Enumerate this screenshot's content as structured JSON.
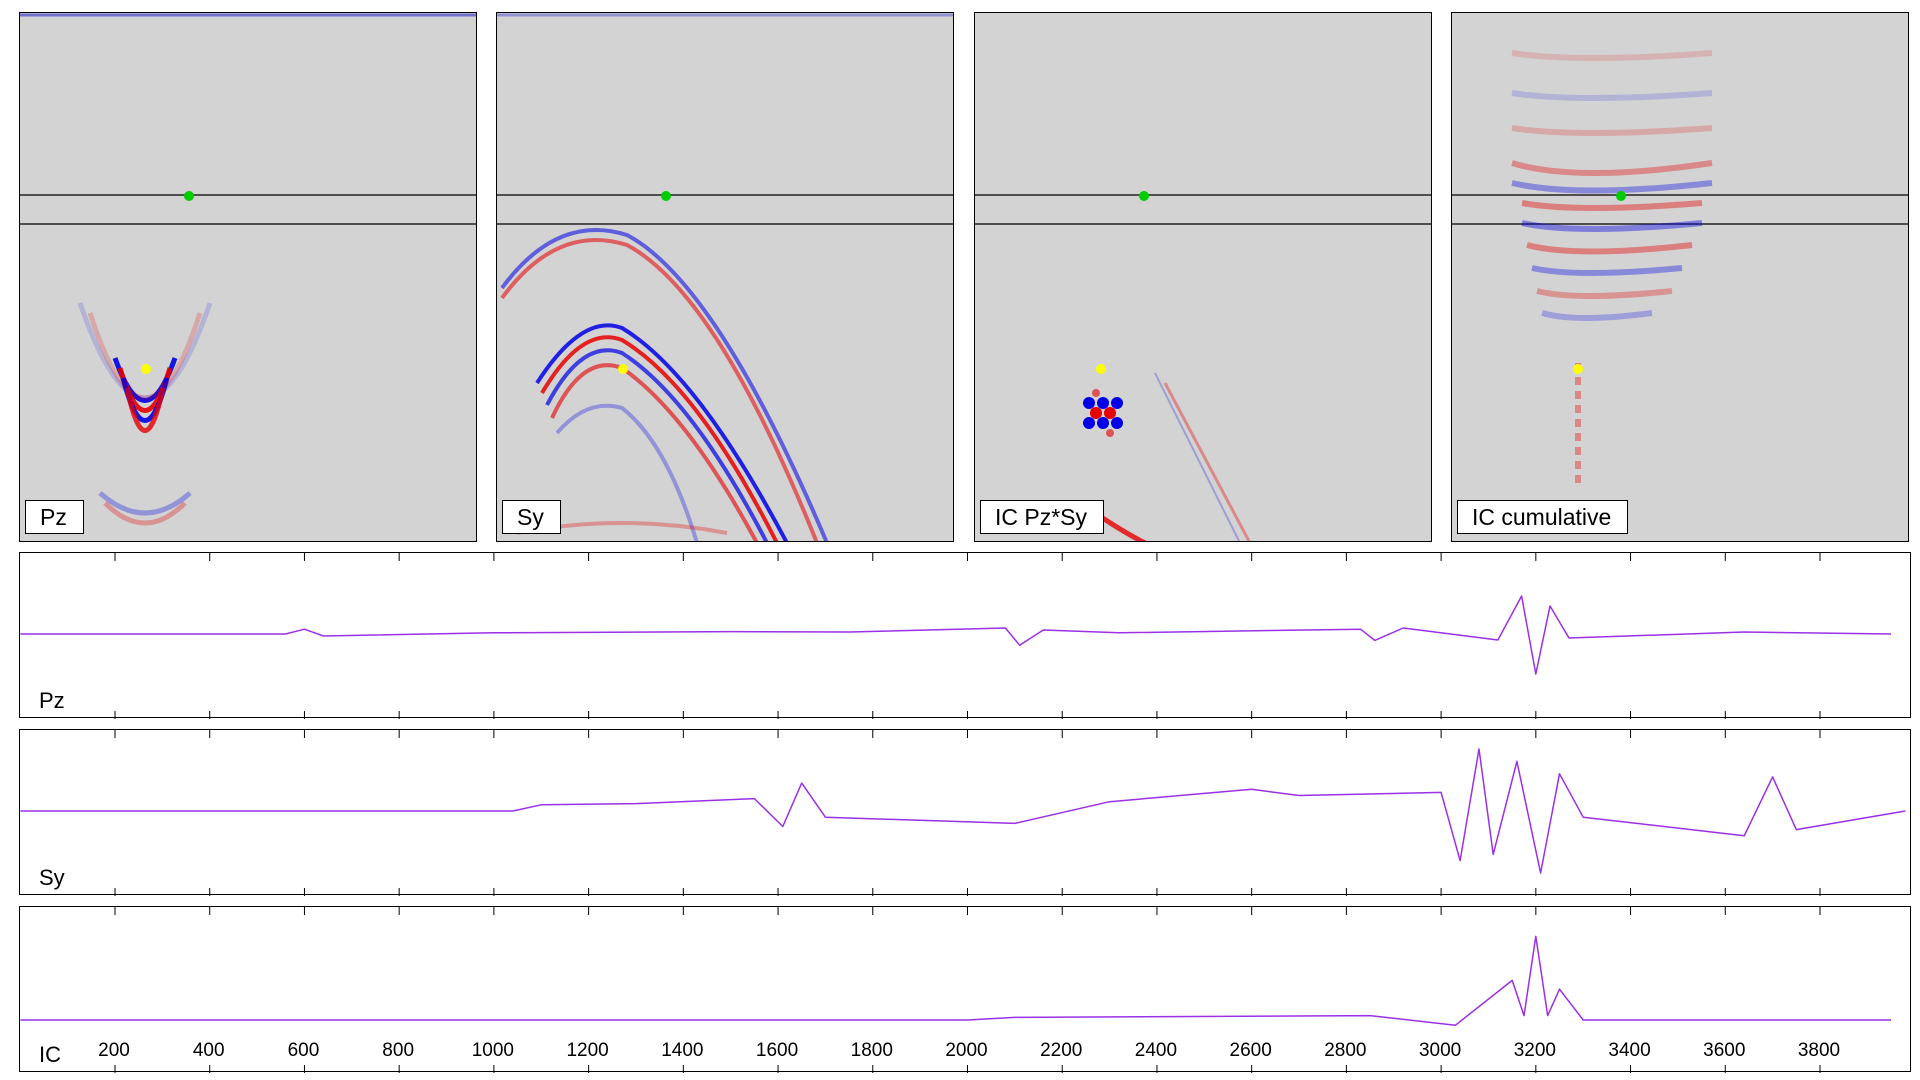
{
  "panels": [
    {
      "label": "Pz"
    },
    {
      "label": "Sy"
    },
    {
      "label": "IC Pz*Sy"
    },
    {
      "label": "IC cumulative"
    }
  ],
  "colors": {
    "panel_bg": "#d3d3d3",
    "positive": "#e60000",
    "negative": "#0000e6",
    "source_marker": "#00cc00",
    "receiver_marker": "#ffff00",
    "trace": "#9b30e6"
  },
  "chart_data": [
    {
      "type": "line",
      "series": [
        {
          "values": [
            [
              0,
              0
            ],
            [
              560,
              0
            ],
            [
              600,
              0.12
            ],
            [
              640,
              -0.05
            ],
            [
              1000,
              0.03
            ],
            [
              1500,
              0.06
            ],
            [
              1750,
              0.05
            ],
            [
              2080,
              0.15
            ],
            [
              2110,
              -0.28
            ],
            [
              2160,
              0.1
            ],
            [
              2320,
              0.03
            ],
            [
              2830,
              0.12
            ],
            [
              2860,
              -0.16
            ],
            [
              2920,
              0.15
            ],
            [
              3120,
              -0.15
            ],
            [
              3170,
              0.95
            ],
            [
              3200,
              -1.0
            ],
            [
              3230,
              0.7
            ],
            [
              3270,
              -0.1
            ],
            [
              3640,
              0.05
            ],
            [
              3950,
              0
            ]
          ]
        }
      ],
      "xlim": [
        0,
        4000
      ],
      "grid": false
    },
    {
      "type": "line",
      "series": [
        {
          "values": [
            [
              0,
              0
            ],
            [
              1040,
              0
            ],
            [
              1100,
              0.1
            ],
            [
              1300,
              0.12
            ],
            [
              1550,
              0.2
            ],
            [
              1610,
              -0.25
            ],
            [
              1650,
              0.45
            ],
            [
              1700,
              -0.1
            ],
            [
              2100,
              -0.2
            ],
            [
              2300,
              0.15
            ],
            [
              2600,
              0.35
            ],
            [
              2700,
              0.25
            ],
            [
              3000,
              0.3
            ],
            [
              3040,
              -0.8
            ],
            [
              3080,
              1.0
            ],
            [
              3110,
              -0.7
            ],
            [
              3160,
              0.8
            ],
            [
              3210,
              -1.0
            ],
            [
              3250,
              0.6
            ],
            [
              3300,
              -0.1
            ],
            [
              3640,
              -0.4
            ],
            [
              3700,
              0.55
            ],
            [
              3750,
              -0.3
            ],
            [
              3980,
              0
            ]
          ]
        }
      ],
      "xlim": [
        0,
        4000
      ],
      "grid": false
    },
    {
      "type": "line",
      "series": [
        {
          "values": [
            [
              0,
              0
            ],
            [
              2000,
              0
            ],
            [
              2100,
              0.03
            ],
            [
              2850,
              0.05
            ],
            [
              3030,
              -0.06
            ],
            [
              3150,
              0.45
            ],
            [
              3175,
              0.05
            ],
            [
              3200,
              0.95
            ],
            [
              3225,
              0.05
            ],
            [
              3250,
              0.35
            ],
            [
              3300,
              0
            ],
            [
              3950,
              0
            ]
          ]
        }
      ],
      "xlim": [
        0,
        4000
      ],
      "x_ticks": [
        200,
        400,
        600,
        800,
        1000,
        1200,
        1400,
        1600,
        1800,
        2000,
        2200,
        2400,
        2600,
        2800,
        3000,
        3200,
        3400,
        3600,
        3800
      ],
      "x_tick_labels": [
        "200",
        "400",
        "600",
        "800",
        "1000",
        "1200",
        "1400",
        "1600",
        "1800",
        "2000",
        "2200",
        "2400",
        "2600",
        "2800",
        "3000",
        "3200",
        "3400",
        "3600",
        "3800"
      ],
      "grid": false
    }
  ],
  "traces": [
    {
      "label": "Pz"
    },
    {
      "label": "Sy"
    },
    {
      "label": "IC"
    }
  ]
}
